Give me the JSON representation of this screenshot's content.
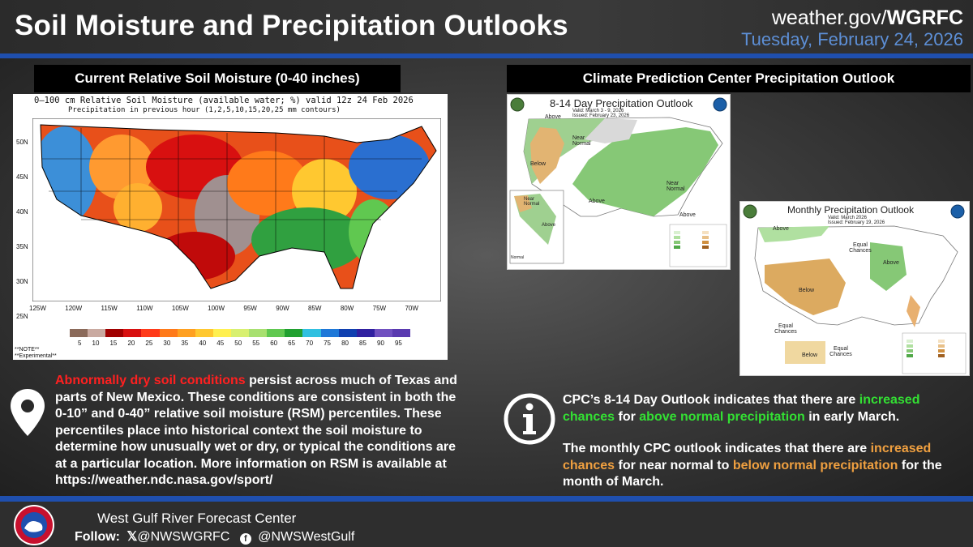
{
  "header": {
    "title": "Soil Moisture and Precipitation Outlooks",
    "site_prefix": "weather.gov/",
    "site_bold": "WGRFC",
    "date": "Tuesday, February 24, 2026"
  },
  "left_panel": {
    "title": "Current Relative Soil Moisture (0-40 inches)",
    "map_header_1": "0–100 cm Relative Soil Moisture (available water; %) valid 12z 24 Feb 2026",
    "map_header_2": "Precipitation in previous hour (1,2,5,10,15,20,25 mm contours)",
    "lat_labels": [
      "50N",
      "45N",
      "40N",
      "35N",
      "30N",
      "25N"
    ],
    "lon_labels": [
      "125W",
      "120W",
      "115W",
      "110W",
      "105W",
      "100W",
      "95W",
      "90W",
      "85W",
      "80W",
      "75W",
      "70W"
    ],
    "legend_values": [
      "5",
      "10",
      "15",
      "20",
      "25",
      "30",
      "35",
      "40",
      "45",
      "50",
      "55",
      "60",
      "65",
      "70",
      "75",
      "80",
      "85",
      "90",
      "95"
    ],
    "legend_colors": [
      "#8b6a5a",
      "#c9a9a0",
      "#a00000",
      "#d81010",
      "#ff3a1a",
      "#ff7a1a",
      "#ffa020",
      "#ffc830",
      "#fff050",
      "#d8f070",
      "#a8e070",
      "#60c850",
      "#20a030",
      "#30c0e0",
      "#1e78d8",
      "#1040b0",
      "#3020a0",
      "#7050c0",
      "#5a3ab0"
    ],
    "note_1": "**NOTE**",
    "note_2": "**Experimental**",
    "body_highlight": "Abnormally dry soil conditions",
    "body_rest": " persist across much of Texas and parts of New Mexico. These conditions are consistent in both the 0-10” and 0-40” relative soil moisture (RSM) percentiles.  These percentiles place into historical context the soil moisture to determine how unusually wet or dry, or typical the conditions are at a particular location. More information on RSM is available at https://weather.ndc.nasa.gov/sport/"
  },
  "right_panel": {
    "title": "Climate Prediction Center Precipitation Outlook",
    "map814": {
      "title": "8-14 Day Precipitation Outlook",
      "valid": "Valid: March 3 - 9, 2026",
      "issued": "Issued: February 23, 2026",
      "labels": [
        "Above",
        "Near Normal",
        "Below",
        "Above",
        "Near Normal",
        "Above",
        "Near Normal",
        "Above",
        "Normal"
      ]
    },
    "mapmon": {
      "title": "Monthly Precipitation Outlook",
      "valid": "Valid: March 2026",
      "issued": "Issued: February 19, 2026",
      "labels": [
        "Above",
        "Equal Chances",
        "Above",
        "Below",
        "Equal Chances",
        "Below",
        "Equal Chances"
      ]
    },
    "para1_a": "CPC’s 8-14 Day Outlook indicates that there are ",
    "para1_b": "increased chances",
    "para1_c": " for ",
    "para1_d": "above normal precipitation",
    "para1_e": " in early March.",
    "para2_a": "The monthly CPC outlook indicates that there are ",
    "para2_b": "increased chances",
    "para2_c": " for near normal to ",
    "para2_d": "below normal precipitation",
    "para2_e": " for the month of March."
  },
  "footer": {
    "org": "West Gulf River Forecast Center",
    "follow_label": "Follow:",
    "x_handle": "@NWSWGRFC",
    "fb_handle": "@NWSWestGulf"
  },
  "colors": {
    "accent_blue": "#1f4fae",
    "date_blue": "#5d8fd6",
    "highlight_red": "#ff2020",
    "highlight_green": "#33e033",
    "highlight_orange": "#f0a040"
  }
}
